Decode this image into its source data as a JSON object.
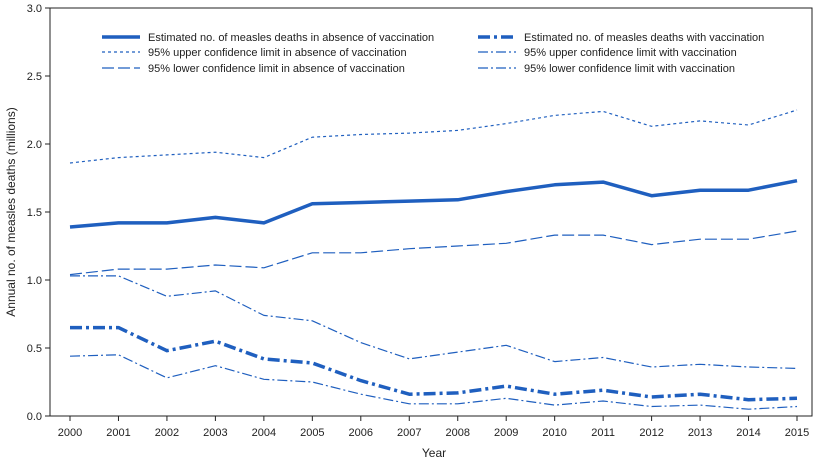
{
  "chart_data": {
    "type": "line",
    "xlabel": "Year",
    "ylabel": "Annual no. of measles deaths (millions)",
    "xlim": [
      2000,
      2015
    ],
    "ylim": [
      0,
      3.0
    ],
    "x": [
      2000,
      2001,
      2002,
      2003,
      2004,
      2005,
      2006,
      2007,
      2008,
      2009,
      2010,
      2011,
      2012,
      2013,
      2014,
      2015
    ],
    "x_ticks": [
      "2000",
      "2001",
      "2002",
      "2003",
      "2004",
      "2005",
      "2006",
      "2007",
      "2008",
      "2009",
      "2010",
      "2011",
      "2012",
      "2013",
      "2014",
      "2015"
    ],
    "y_ticks": [
      "0.0",
      "0.5",
      "1.0",
      "1.5",
      "2.0",
      "2.5",
      "3.0"
    ],
    "grid": false,
    "legend_position": "top",
    "color": "#1f5fbf",
    "series": [
      {
        "name": "Estimated no. of measles deaths in absence of vaccination",
        "style": "solid-thick",
        "values": [
          1.39,
          1.42,
          1.42,
          1.46,
          1.42,
          1.56,
          1.57,
          1.58,
          1.59,
          1.65,
          1.7,
          1.72,
          1.62,
          1.66,
          1.66,
          1.73
        ]
      },
      {
        "name": "Estimated no. of measles deaths with vaccination",
        "style": "dashdot-thick",
        "values": [
          0.65,
          0.65,
          0.48,
          0.55,
          0.42,
          0.39,
          0.26,
          0.16,
          0.17,
          0.22,
          0.16,
          0.19,
          0.14,
          0.16,
          0.12,
          0.13
        ]
      },
      {
        "name": "95% upper confidence limit in absence of vaccination",
        "style": "dotted",
        "values": [
          1.86,
          1.9,
          1.92,
          1.94,
          1.9,
          2.05,
          2.07,
          2.08,
          2.1,
          2.15,
          2.21,
          2.24,
          2.13,
          2.17,
          2.14,
          2.25
        ]
      },
      {
        "name": "95% upper confidence limit with vaccination",
        "style": "dashdot-thin",
        "values": [
          1.03,
          1.03,
          0.88,
          0.92,
          0.74,
          0.7,
          0.54,
          0.42,
          0.47,
          0.52,
          0.4,
          0.43,
          0.36,
          0.38,
          0.36,
          0.35
        ]
      },
      {
        "name": "95% lower confidence limit in absence of vaccination",
        "style": "longdash",
        "values": [
          1.04,
          1.08,
          1.08,
          1.11,
          1.09,
          1.2,
          1.2,
          1.23,
          1.25,
          1.27,
          1.33,
          1.33,
          1.26,
          1.3,
          1.3,
          1.36
        ]
      },
      {
        "name": "95% lower confidence limit with vaccination",
        "style": "dashdot-thin",
        "values": [
          0.44,
          0.45,
          0.28,
          0.37,
          0.27,
          0.25,
          0.16,
          0.09,
          0.09,
          0.13,
          0.08,
          0.11,
          0.07,
          0.08,
          0.05,
          0.07
        ]
      }
    ]
  }
}
